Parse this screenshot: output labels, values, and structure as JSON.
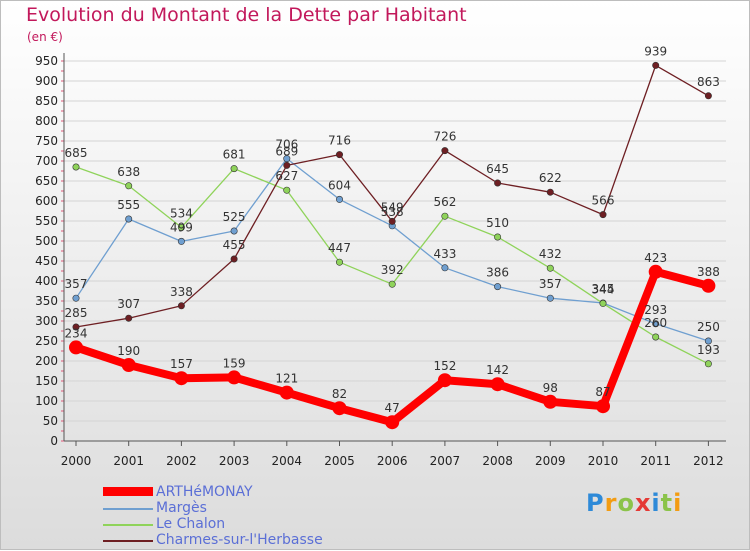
{
  "header": {
    "title": "Evolution du Montant de la Dette par Habitant",
    "unit": "(en €)"
  },
  "logo": {
    "text": "Proxiti",
    "letter_colors": [
      "#2e8ad8",
      "#f39c12",
      "#8bc34a",
      "#e53935",
      "#2e8ad8",
      "#8bc34a",
      "#f39c12"
    ]
  },
  "chart_data": {
    "type": "line",
    "categories": [
      "2000",
      "2001",
      "2002",
      "2003",
      "2004",
      "2005",
      "2006",
      "2007",
      "2008",
      "2009",
      "2010",
      "2011",
      "2012"
    ],
    "ylim": [
      0,
      950
    ],
    "yticks": [
      0,
      50,
      100,
      150,
      200,
      250,
      300,
      350,
      400,
      450,
      500,
      550,
      600,
      650,
      700,
      750,
      800,
      850,
      900,
      950
    ],
    "grid": "horizontal",
    "legend_position": "bottom-left",
    "series": [
      {
        "name": "ARTHéMONAY",
        "color": "#ff0000",
        "weight": "thick",
        "values": [
          234,
          190,
          157,
          159,
          121,
          82,
          47,
          152,
          142,
          98,
          87,
          423,
          388
        ]
      },
      {
        "name": "Margès",
        "color": "#6f9fd0",
        "weight": "thin",
        "values": [
          357,
          555,
          499,
          525,
          706,
          604,
          538,
          433,
          386,
          357,
          345,
          293,
          250
        ]
      },
      {
        "name": "Le Chalon",
        "color": "#8fd35a",
        "weight": "thin",
        "values": [
          685,
          638,
          534,
          681,
          627,
          447,
          392,
          562,
          510,
          432,
          344,
          260,
          193
        ]
      },
      {
        "name": "Charmes-sur-l'Herbasse",
        "color": "#6e1f23",
        "weight": "thin",
        "values": [
          285,
          307,
          338,
          455,
          689,
          716,
          549,
          726,
          645,
          622,
          566,
          939,
          863
        ]
      }
    ]
  }
}
